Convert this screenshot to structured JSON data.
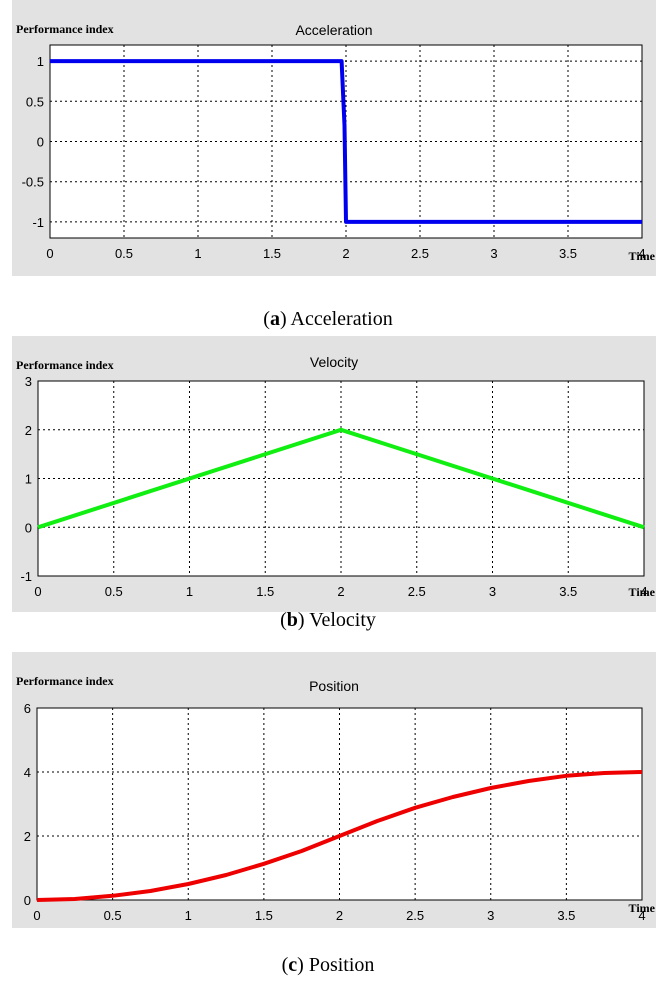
{
  "chart_data": [
    {
      "type": "line",
      "title": "Acceleration",
      "ylabel": "Performance index",
      "xlabel": "Time",
      "xlim": [
        0,
        4
      ],
      "ylim": [
        -1.2,
        1.2
      ],
      "x_ticks": [
        "0",
        "0.5",
        "1",
        "1.5",
        "2",
        "2.5",
        "3",
        "3.5",
        "4"
      ],
      "y_ticks": [
        "1",
        "0.5",
        "0",
        "-0.5",
        "-1"
      ],
      "y_tick_values": [
        1,
        0.5,
        0,
        -0.5,
        -1
      ],
      "grid": true,
      "series": [
        {
          "color": "#0000ee",
          "x": [
            0,
            1.97,
            1.99,
            2.0,
            4.0
          ],
          "y": [
            1,
            1,
            0.2,
            -1,
            -1
          ]
        }
      ]
    },
    {
      "type": "line",
      "title": "Velocity",
      "ylabel": "Performance index",
      "xlabel": "Time",
      "xlim": [
        0,
        4
      ],
      "ylim": [
        -1,
        3
      ],
      "x_ticks": [
        "0",
        "0.5",
        "1",
        "1.5",
        "2",
        "2.5",
        "3",
        "3.5",
        "4"
      ],
      "y_ticks": [
        "3",
        "2",
        "1",
        "0",
        "-1"
      ],
      "y_tick_values": [
        3,
        2,
        1,
        0,
        -1
      ],
      "grid": true,
      "series": [
        {
          "color": "#11ee11",
          "x": [
            0,
            2,
            4
          ],
          "y": [
            0,
            2,
            0
          ]
        }
      ]
    },
    {
      "type": "line",
      "title": "Position",
      "ylabel": "Performance index",
      "xlabel": "Time",
      "xlim": [
        0,
        4
      ],
      "ylim": [
        0,
        6
      ],
      "x_ticks": [
        "0",
        "0.5",
        "1",
        "1.5",
        "2",
        "2.5",
        "3",
        "3.5",
        "4"
      ],
      "y_ticks": [
        "6",
        "4",
        "2",
        "0"
      ],
      "y_tick_values": [
        6,
        4,
        2,
        0
      ],
      "grid": true,
      "series": [
        {
          "color": "#ee0000",
          "x": [
            0,
            0.25,
            0.5,
            0.75,
            1.0,
            1.25,
            1.5,
            1.75,
            2.0,
            2.25,
            2.5,
            2.75,
            3.0,
            3.25,
            3.5,
            3.75,
            4.0
          ],
          "y": [
            0,
            0.03,
            0.13,
            0.28,
            0.5,
            0.78,
            1.13,
            1.53,
            2.0,
            2.47,
            2.88,
            3.22,
            3.5,
            3.72,
            3.88,
            3.97,
            4.0
          ]
        }
      ]
    }
  ],
  "captions": [
    {
      "letter": "a",
      "text": "Acceleration"
    },
    {
      "letter": "b",
      "text": "Velocity"
    },
    {
      "letter": "c",
      "text": "Position"
    }
  ]
}
